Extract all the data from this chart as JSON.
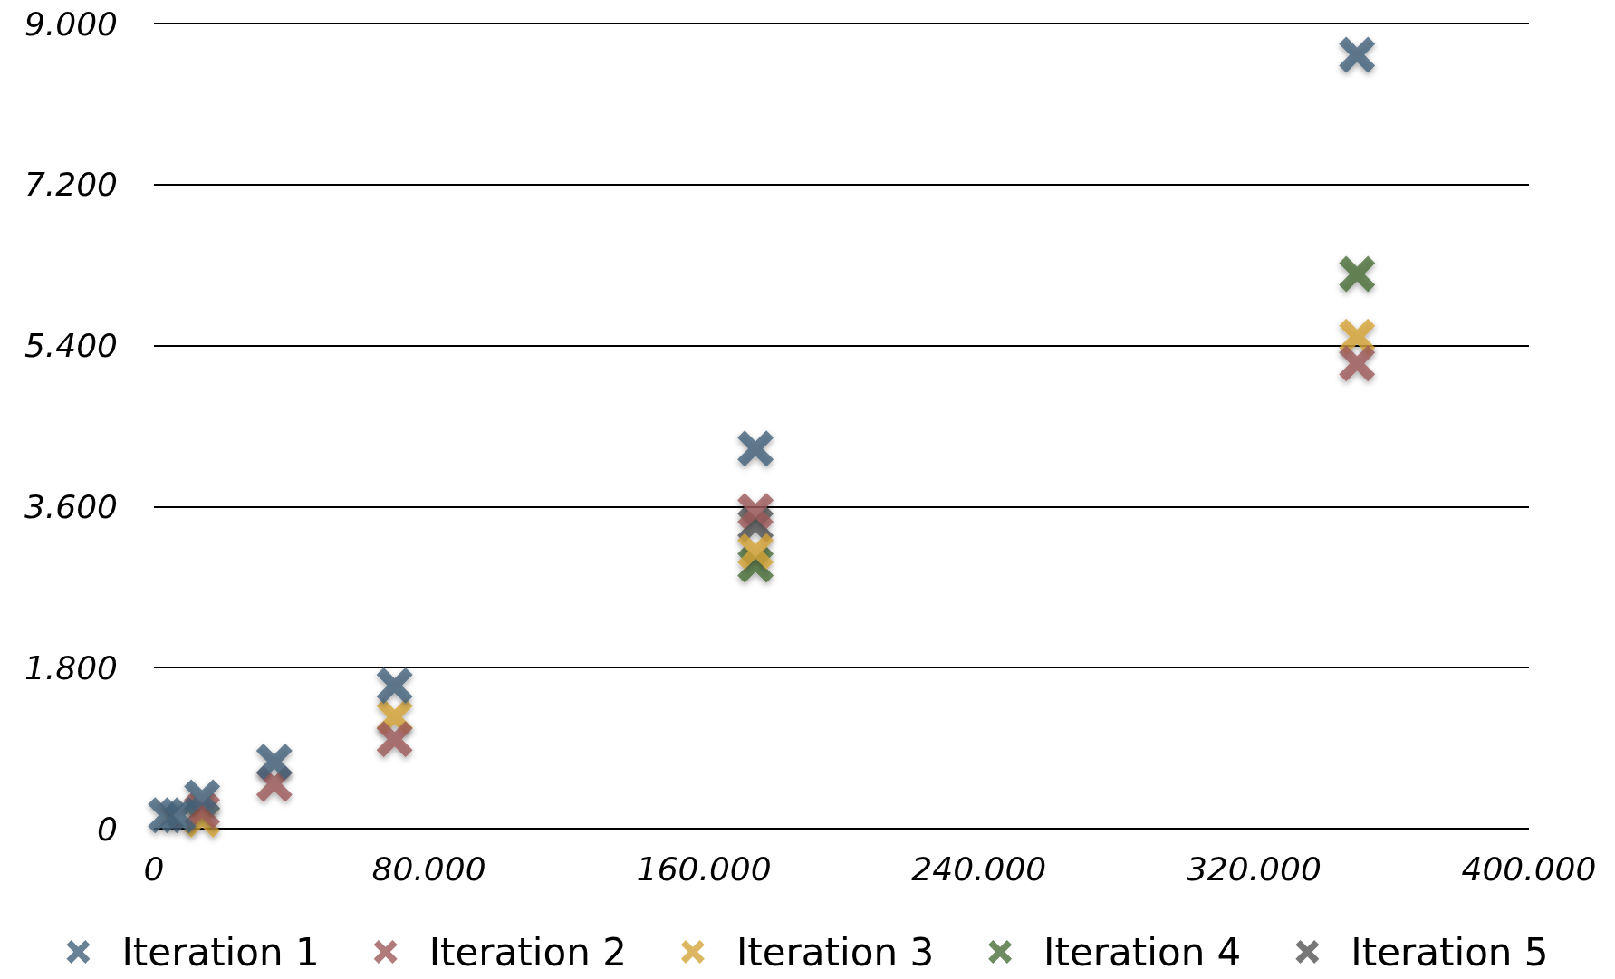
{
  "chart_data": {
    "type": "scatter",
    "x": [
      3500,
      7000,
      14000,
      35000,
      70000,
      175000,
      350000
    ],
    "series": [
      {
        "name": "Iteration 1",
        "color": "#44617b",
        "values": [
          150,
          150,
          350,
          750,
          1600,
          4250,
          8650
        ]
      },
      {
        "name": "Iteration 2",
        "color": "#9e5a5a",
        "values": [
          null,
          null,
          200,
          500,
          1000,
          3550,
          5200
        ]
      },
      {
        "name": "Iteration 3",
        "color": "#d4a43a",
        "values": [
          null,
          null,
          100,
          null,
          1250,
          3100,
          5500
        ]
      },
      {
        "name": "Iteration 4",
        "color": "#4a6e3a",
        "values": [
          null,
          null,
          null,
          null,
          null,
          2950,
          6200
        ]
      },
      {
        "name": "Iteration 5",
        "color": "#555555",
        "values": [
          null,
          null,
          null,
          null,
          null,
          3400,
          null
        ]
      }
    ],
    "xlim": [
      0,
      400000
    ],
    "ylim": [
      0,
      9000
    ],
    "xticks": [
      0,
      {
        "value": 80000,
        "label": "80.000"
      },
      {
        "value": 160000,
        "label": "160.000"
      },
      {
        "value": 240000,
        "label": "240.000"
      },
      {
        "value": 320000,
        "label": "320.000"
      },
      {
        "value": 400000,
        "label": "400.000"
      }
    ],
    "yticks": [
      0,
      {
        "value": 1800,
        "label": "1.800"
      },
      {
        "value": 3600,
        "label": "3.600"
      },
      {
        "value": 5400,
        "label": "5.400"
      },
      {
        "value": 7200,
        "label": "7.200"
      },
      {
        "value": 9000,
        "label": "9.000"
      }
    ],
    "grid": "y",
    "legend": "bottom",
    "marker": "cross"
  }
}
